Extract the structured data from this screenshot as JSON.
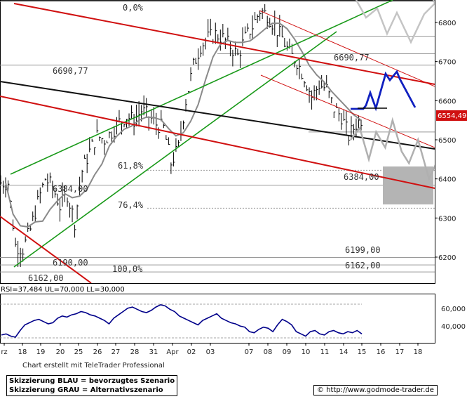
{
  "chart_data": [
    {
      "type": "line",
      "title": "",
      "price_axis": {
        "min": 6150,
        "max": 6870,
        "ticks": [
          6200,
          6300,
          6400,
          6500,
          6600,
          6700,
          6800
        ]
      },
      "last_price_badge": "6554,49",
      "date_labels": [
        "rz",
        "18",
        "19",
        "20",
        "25",
        "26",
        "27",
        "28",
        "31",
        "Apr",
        "02",
        "03",
        "07",
        "08",
        "09",
        "10",
        "11",
        "14",
        "15",
        "16",
        "17",
        "18"
      ],
      "fib_labels": [
        {
          "text": "0,0%",
          "price": 6853
        },
        {
          "text": "61,8%",
          "price": 6422
        },
        {
          "text": "76,4%",
          "price": 6325
        }
      ],
      "level_labels": [
        {
          "text": "6690,77",
          "price": 6690.77,
          "side": "left"
        },
        {
          "text": "6690,77",
          "price": 6714,
          "side": "right"
        },
        {
          "text": "6384,00",
          "price": 6384,
          "side": "left"
        },
        {
          "text": "6384,00",
          "price": 6384,
          "side": "right"
        },
        {
          "text": "6199,00",
          "price": 6199,
          "side": "right"
        },
        {
          "text": "6190,00",
          "price": 6180,
          "side": "left"
        },
        {
          "text": "6162,00",
          "price": 6162,
          "side": "right"
        },
        {
          "text": "6162,00",
          "price": 6140,
          "side": "left"
        },
        {
          "text": "100,0%",
          "price": 6162,
          "side": "mid"
        }
      ],
      "close_series": [
        6390,
        6230,
        6220,
        6270,
        6340,
        6400,
        6380,
        6330,
        6360,
        6290,
        6420,
        6470,
        6510,
        6500,
        6520,
        6545,
        6560,
        6550,
        6575,
        6560,
        6540,
        6530,
        6440,
        6480,
        6600,
        6690,
        6740,
        6760,
        6770,
        6760,
        6740,
        6715,
        6760,
        6790,
        6830,
        6820,
        6790,
        6760,
        6720,
        6700,
        6660,
        6610,
        6640,
        6630,
        6580,
        6560,
        6510,
        6540,
        6560
      ],
      "scenario_blue": [
        [
          6580,
          15.0
        ],
        [
          6565,
          15.5
        ],
        [
          6585,
          15.9
        ],
        [
          6565,
          16.3
        ],
        [
          6640,
          16.8
        ],
        [
          6610,
          17.0
        ],
        [
          6660,
          17.3
        ],
        [
          6645,
          17.5
        ],
        [
          6580,
          18.0
        ]
      ],
      "scenario_gray": [
        [
          6500,
          14.8
        ],
        [
          6530,
          15.3
        ],
        [
          6450,
          15.8
        ],
        [
          6520,
          16.2
        ],
        [
          6480,
          16.7
        ],
        [
          6550,
          17.1
        ],
        [
          6470,
          17.6
        ],
        [
          6440,
          18.0
        ],
        [
          6500,
          18.5
        ],
        [
          6400,
          19.1
        ],
        [
          6450,
          19.6
        ],
        [
          6420,
          20.0
        ]
      ]
    },
    {
      "type": "line",
      "title": "RSI=37,484 UL=70,000 LL=30,000",
      "ylim": [
        30,
        74
      ],
      "ticks": [
        40000,
        60000
      ],
      "tick_labels": [
        "40,000",
        "60,000"
      ],
      "series": [
        {
          "values": [
            37,
            38,
            36,
            35,
            41,
            46,
            48,
            50,
            51,
            49,
            47,
            48,
            52,
            54,
            53,
            55,
            56,
            58,
            57,
            55,
            54,
            52,
            50,
            47,
            52,
            55,
            58,
            61,
            62,
            60,
            58,
            57,
            59,
            62,
            64,
            63,
            60,
            58,
            54,
            52,
            50,
            48,
            46,
            50,
            52,
            54,
            56,
            52,
            50,
            48,
            47,
            45,
            44,
            40,
            39,
            42,
            44,
            43,
            40,
            46,
            51,
            49,
            46,
            40,
            38,
            36,
            40,
            41,
            38,
            37,
            40,
            41,
            39,
            38,
            40,
            39,
            41,
            38
          ]
        }
      ]
    }
  ],
  "credit": "Chart erstellt mit TeleTrader Professional",
  "legend": {
    "line1": "Skizzierung BLAU = bevorzugtes Szenario",
    "line2": "Skizzierung GRAU = Alternativszenario"
  },
  "source": "http://www.godmode-trader.de",
  "colors": {
    "green": "#1a9a1a",
    "red": "#d01010",
    "black": "#111111",
    "blue": "#1020c0",
    "gray_scenario": "#b0b0b0",
    "ma": "#8a8a8a",
    "price": "#000000",
    "rsi": "#00008a"
  }
}
